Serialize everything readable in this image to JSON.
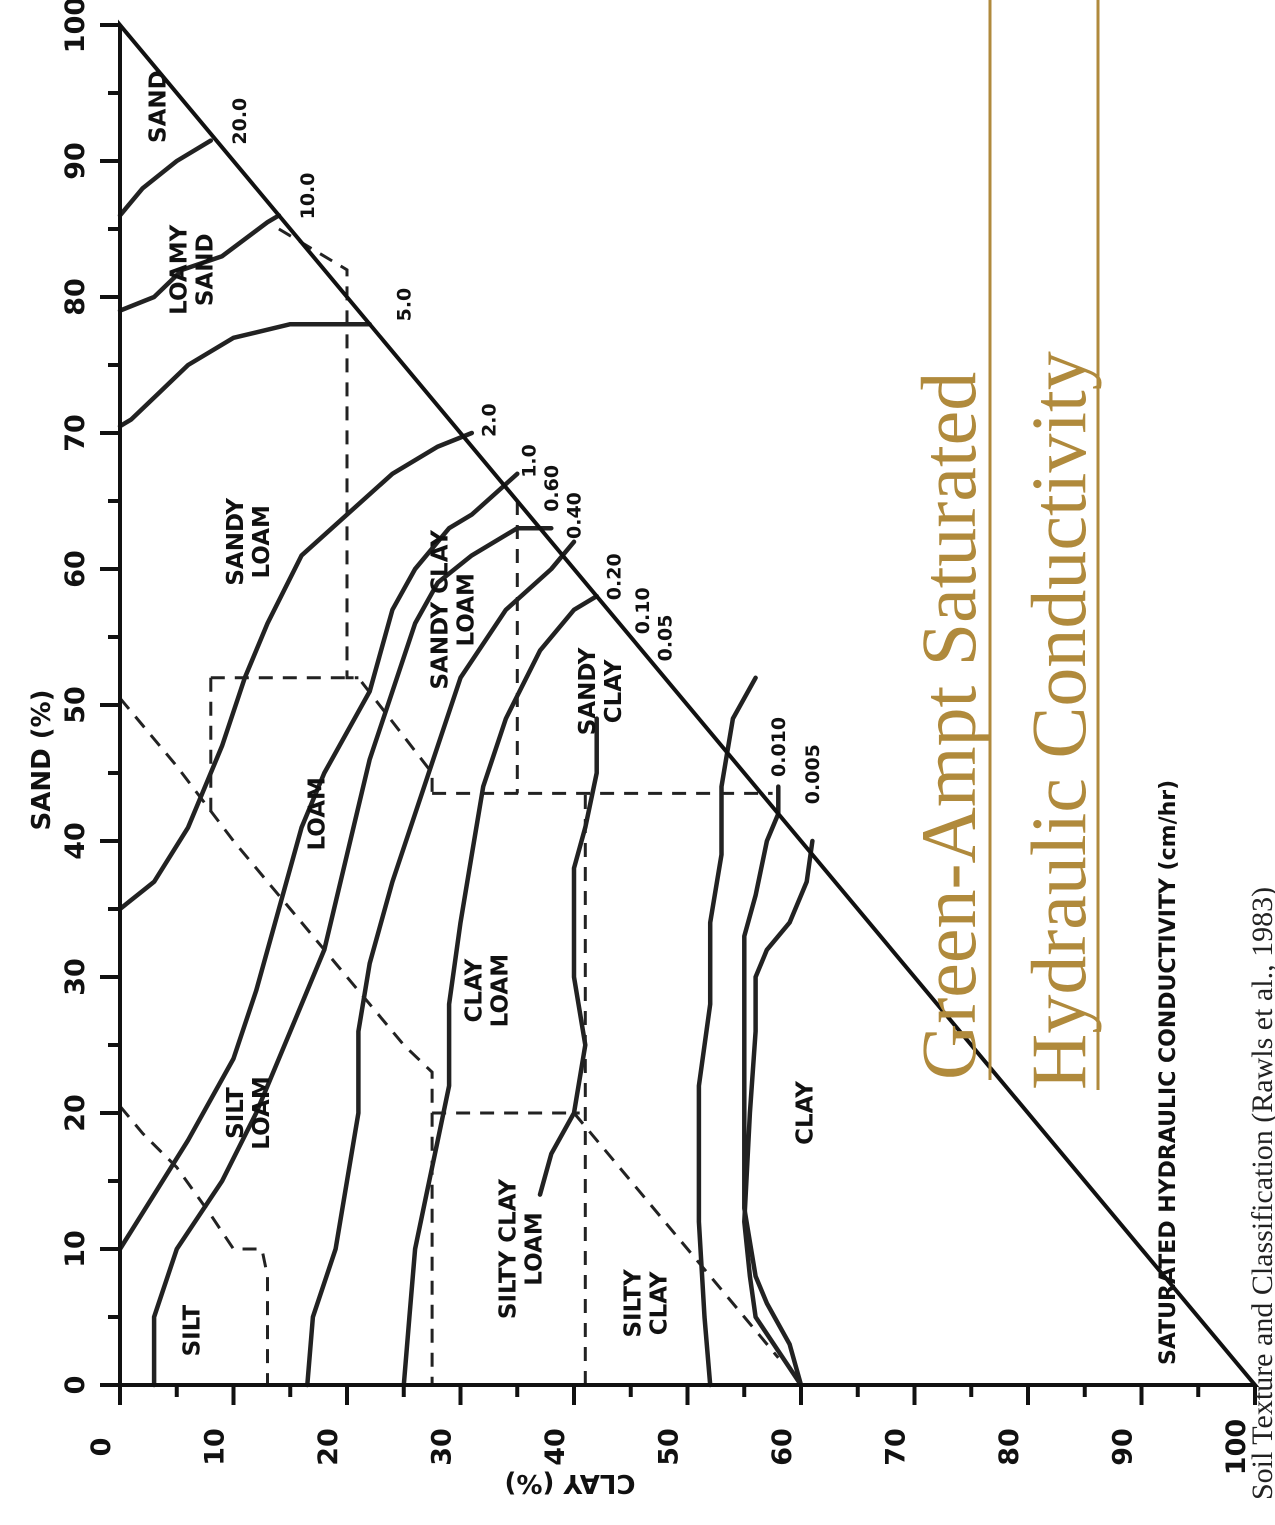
{
  "title": {
    "line1": "Green-Ampt Saturated",
    "line2": "Hydraulic Conductivity"
  },
  "subtitle": "SATURATED HYDRAULIC CONDUCTIVITY (cm/hr)",
  "citation": "Soil Texture and Classification (Rawls et al., 1983)",
  "axes": {
    "sand_label": "SAND (%)",
    "clay_label": "CLAY (%)",
    "sand_ticks": [
      "0",
      "10",
      "20",
      "30",
      "40",
      "50",
      "60",
      "70",
      "80",
      "90",
      "100"
    ],
    "clay_ticks": [
      "0",
      "10",
      "20",
      "30",
      "40",
      "50",
      "60",
      "70",
      "80",
      "90",
      "100"
    ]
  },
  "textures": [
    {
      "id": "sand",
      "lines": [
        "SAND"
      ],
      "sand": 94,
      "clay": 4
    },
    {
      "id": "loamy-sand",
      "lines": [
        "LOAMY",
        "SAND"
      ],
      "sand": 82,
      "clay": 7
    },
    {
      "id": "sandy-loam",
      "lines": [
        "SANDY",
        "LOAM"
      ],
      "sand": 62,
      "clay": 12
    },
    {
      "id": "sandy-clay-loam",
      "lines": [
        "SANDY CLAY",
        "LOAM"
      ],
      "sand": 57,
      "clay": 30
    },
    {
      "id": "loam",
      "lines": [
        "LOAM"
      ],
      "sand": 42,
      "clay": 18
    },
    {
      "id": "silt-loam",
      "lines": [
        "SILT",
        "LOAM"
      ],
      "sand": 20,
      "clay": 12
    },
    {
      "id": "silt",
      "lines": [
        "SILT"
      ],
      "sand": 4,
      "clay": 7
    },
    {
      "id": "clay-loam",
      "lines": [
        "CLAY",
        "LOAM"
      ],
      "sand": 29,
      "clay": 33
    },
    {
      "id": "silty-clay-loam",
      "lines": [
        "SILTY CLAY",
        "LOAM"
      ],
      "sand": 10,
      "clay": 36
    },
    {
      "id": "sandy-clay",
      "lines": [
        "SANDY",
        "CLAY"
      ],
      "sand": 51,
      "clay": 43
    },
    {
      "id": "silty-clay",
      "lines": [
        "SILTY",
        "CLAY"
      ],
      "sand": 6,
      "clay": 47
    },
    {
      "id": "clay",
      "lines": [
        "CLAY"
      ],
      "sand": 20,
      "clay": 61
    }
  ],
  "conductivity_labels": [
    "20.0",
    "10.0",
    "5.0",
    "2.0",
    "1.0",
    "0.60",
    "0.40",
    "0.20",
    "0.10",
    "0.05",
    "0.010",
    "0.005"
  ],
  "conductivity_lines": [
    {
      "k": "20.0",
      "points": [
        [
          86,
          0
        ],
        [
          88,
          2
        ],
        [
          90,
          5
        ],
        [
          91.5,
          8
        ]
      ]
    },
    {
      "k": "10.0",
      "points": [
        [
          79,
          0
        ],
        [
          80,
          3
        ],
        [
          82,
          5.5
        ],
        [
          83,
          9
        ],
        [
          85.5,
          13
        ],
        [
          86,
          14
        ]
      ]
    },
    {
      "k": "5.0",
      "points": [
        [
          70.5,
          0
        ],
        [
          71,
          1
        ],
        [
          73,
          3.5
        ],
        [
          75,
          6
        ],
        [
          77,
          10
        ],
        [
          78,
          15
        ],
        [
          78,
          22
        ]
      ]
    },
    {
      "k": "2.0",
      "points": [
        [
          35,
          0
        ],
        [
          37,
          3
        ],
        [
          41,
          6
        ],
        [
          47,
          9
        ],
        [
          52,
          11
        ],
        [
          56,
          13
        ],
        [
          61,
          16
        ],
        [
          64,
          20
        ],
        [
          67,
          24
        ],
        [
          69,
          28
        ],
        [
          70,
          31
        ]
      ]
    },
    {
      "k": "1.0",
      "points": [
        [
          10,
          0
        ],
        [
          14,
          3
        ],
        [
          18,
          6
        ],
        [
          24,
          10
        ],
        [
          29,
          12
        ],
        [
          35,
          14
        ],
        [
          41,
          16
        ],
        [
          45,
          18
        ],
        [
          51,
          22
        ],
        [
          57,
          24
        ],
        [
          60,
          26
        ],
        [
          63,
          29
        ],
        [
          64,
          31
        ],
        [
          67,
          35
        ]
      ]
    },
    {
      "k": "0.60",
      "points": [
        [
          0,
          3
        ],
        [
          5,
          3
        ],
        [
          10,
          5
        ],
        [
          15,
          9
        ],
        [
          20,
          12
        ],
        [
          26,
          15
        ],
        [
          32,
          18
        ],
        [
          39,
          20
        ],
        [
          46,
          22
        ],
        [
          51,
          24
        ],
        [
          56,
          26
        ],
        [
          59,
          28
        ],
        [
          61,
          31
        ],
        [
          63,
          35
        ],
        [
          63,
          38
        ]
      ]
    },
    {
      "k": "0.40",
      "points": [
        [
          0,
          16.5
        ],
        [
          5,
          17
        ],
        [
          10,
          19
        ],
        [
          15,
          20
        ],
        [
          20,
          21
        ],
        [
          26,
          21
        ],
        [
          31,
          22
        ],
        [
          37,
          24
        ],
        [
          42,
          26
        ],
        [
          47,
          28
        ],
        [
          52,
          30
        ],
        [
          57,
          34
        ],
        [
          60,
          38
        ],
        [
          62,
          40
        ]
      ]
    },
    {
      "k": "0.20",
      "points": [
        [
          0,
          25
        ],
        [
          5,
          25.5
        ],
        [
          10,
          26
        ],
        [
          14,
          27
        ],
        [
          18,
          28
        ],
        [
          22,
          29
        ],
        [
          28,
          29
        ],
        [
          34,
          30
        ],
        [
          39,
          31
        ],
        [
          44,
          32
        ],
        [
          49,
          34
        ],
        [
          54,
          37
        ],
        [
          57,
          40
        ],
        [
          58,
          42
        ]
      ]
    },
    {
      "k": "0.10",
      "points": [
        [
          14,
          37
        ],
        [
          17,
          38
        ],
        [
          20,
          40
        ],
        [
          25,
          41
        ],
        [
          30,
          40
        ],
        [
          34,
          40
        ],
        [
          38,
          40
        ],
        [
          41,
          41
        ],
        [
          45,
          42
        ],
        [
          49,
          42
        ]
      ]
    },
    {
      "k": "0.05",
      "points": [
        [
          0,
          52
        ],
        [
          5,
          51.5
        ],
        [
          12,
          51
        ],
        [
          17,
          51
        ],
        [
          22,
          51
        ],
        [
          28,
          52
        ],
        [
          34,
          52
        ],
        [
          39,
          53
        ],
        [
          44,
          53
        ],
        [
          49,
          54
        ],
        [
          52,
          56
        ]
      ]
    },
    {
      "k": "0.010",
      "points": [
        [
          0,
          60
        ],
        [
          3,
          59
        ],
        [
          6,
          57
        ],
        [
          8,
          56
        ],
        [
          13,
          55
        ],
        [
          20,
          55
        ],
        [
          26,
          55
        ],
        [
          30,
          55
        ],
        [
          33,
          55
        ],
        [
          36,
          56
        ],
        [
          40,
          57
        ],
        [
          42,
          58
        ],
        [
          44,
          58
        ]
      ]
    },
    {
      "k": "0.005",
      "points": [
        [
          0,
          60
        ],
        [
          5,
          56
        ],
        [
          8,
          55.5
        ],
        [
          12,
          55
        ],
        [
          20,
          55.5
        ],
        [
          26,
          56
        ],
        [
          30,
          56
        ],
        [
          32,
          57
        ],
        [
          34,
          59
        ],
        [
          37,
          60.5
        ],
        [
          40,
          61
        ]
      ]
    }
  ],
  "boundary_lines": [
    [
      [
        20.5,
        0
      ],
      [
        18.5,
        2
      ],
      [
        16,
        5
      ],
      [
        12.5,
        8
      ],
      [
        10,
        10
      ],
      [
        10,
        12.5
      ],
      [
        8,
        13
      ],
      [
        0,
        13
      ]
    ],
    [
      [
        50.5,
        0
      ],
      [
        45.5,
        5
      ],
      [
        40,
        10
      ],
      [
        35,
        15
      ],
      [
        30,
        20
      ],
      [
        25,
        25
      ],
      [
        23,
        27.5
      ],
      [
        0,
        27.5
      ]
    ],
    [
      [
        52,
        8
      ],
      [
        45,
        8
      ],
      [
        42,
        8
      ]
    ],
    [
      [
        52,
        8
      ],
      [
        52,
        21
      ]
    ],
    [
      [
        85,
        14
      ],
      [
        82,
        20
      ],
      [
        52,
        20
      ],
      [
        52,
        21
      ],
      [
        45,
        27.5
      ],
      [
        43.5,
        27.5
      ]
    ],
    [
      [
        43.5,
        27.5
      ],
      [
        43.5,
        57.5
      ]
    ],
    [
      [
        65,
        35
      ],
      [
        45,
        35
      ],
      [
        43.5,
        35
      ]
    ],
    [
      [
        20,
        27.5
      ],
      [
        20,
        40
      ],
      [
        20,
        40.5
      ]
    ],
    [
      [
        20,
        40
      ],
      [
        15,
        45
      ],
      [
        10,
        50
      ],
      [
        5,
        55
      ],
      [
        2,
        58
      ]
    ],
    [
      [
        0,
        41
      ],
      [
        43.5,
        41
      ]
    ]
  ]
}
